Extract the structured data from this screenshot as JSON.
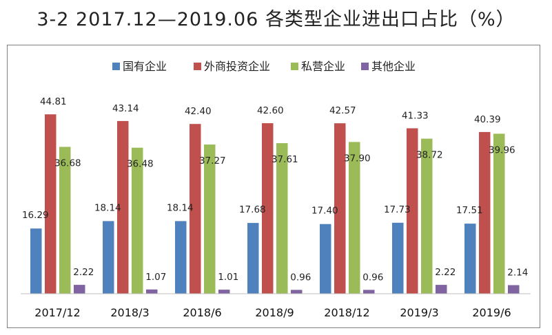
{
  "title": "3-2   2017.12—2019.06 各类型企业进出口占比（%）",
  "chart_data": {
    "type": "bar",
    "title": "3-2   2017.12—2019.06 各类型企业进出口占比（%）",
    "categories": [
      "2017/12",
      "2018/3",
      "2018/6",
      "2018/9",
      "2018/12",
      "2019/3",
      "2019/6"
    ],
    "series": [
      {
        "name": "国有企业",
        "color": "#4f81bd",
        "values": [
          16.29,
          18.14,
          18.14,
          17.68,
          17.4,
          17.73,
          17.51
        ]
      },
      {
        "name": "外商投资企业",
        "color": "#c0504d",
        "values": [
          44.81,
          43.14,
          42.4,
          42.6,
          42.57,
          41.33,
          40.39
        ]
      },
      {
        "name": "私营企业",
        "color": "#9bbb59",
        "values": [
          36.68,
          36.48,
          37.27,
          37.61,
          37.9,
          38.72,
          39.96
        ]
      },
      {
        "name": "其他企业",
        "color": "#8064a2",
        "values": [
          2.22,
          1.07,
          1.01,
          0.96,
          0.96,
          2.22,
          2.14
        ]
      }
    ],
    "ylim": [
      0,
      50
    ],
    "legend": "top",
    "grid": false,
    "xlabel": "",
    "ylabel": ""
  }
}
